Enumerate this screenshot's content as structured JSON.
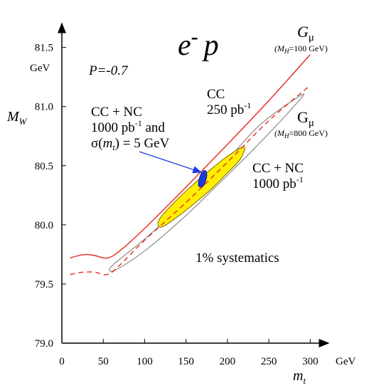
{
  "chart_data": {
    "type": "line",
    "title": "e- p",
    "title_main": "e",
    "title_sup": "-",
    "title_tail": "p",
    "xlabel": "m",
    "xlabel_sub": "t",
    "xunit": "GeV",
    "ylabel": "M",
    "ylabel_sub": "W",
    "yunit": "GeV",
    "xlim": [
      0,
      310
    ],
    "ylim": [
      79.0,
      81.6
    ],
    "x_ticks": [
      {
        "value": 0,
        "label": "0"
      },
      {
        "value": 50,
        "label": "50"
      },
      {
        "value": 100,
        "label": "100"
      },
      {
        "value": 150,
        "label": "150"
      },
      {
        "value": 200,
        "label": "200"
      },
      {
        "value": 250,
        "label": "250"
      },
      {
        "value": 300,
        "label": "300"
      }
    ],
    "y_ticks": [
      {
        "value": 79.0,
        "label": "79.0"
      },
      {
        "value": 79.5,
        "label": "79.5"
      },
      {
        "value": 80.0,
        "label": "80.0"
      },
      {
        "value": 80.5,
        "label": "80.5"
      },
      {
        "value": 81.0,
        "label": "81.0"
      },
      {
        "value": 81.5,
        "label": "81.5"
      }
    ],
    "grid": false,
    "polarization": "P=-0.7",
    "systematics": "1% systematics",
    "series": [
      {
        "name": "Gμ (MH=100 GeV)",
        "style": "solid",
        "color": "#e8281e",
        "x": [
          10,
          20,
          30,
          40,
          55,
          70,
          100,
          150,
          200,
          250,
          300
        ],
        "y": [
          79.72,
          79.74,
          79.75,
          79.74,
          79.72,
          79.78,
          79.97,
          80.32,
          80.68,
          81.05,
          81.44
        ]
      },
      {
        "name": "Gμ (MH=800 GeV)",
        "style": "dashed",
        "color": "#e8281e",
        "x": [
          10,
          25,
          40,
          55,
          70,
          100,
          150,
          200,
          250,
          300
        ],
        "y": [
          79.58,
          79.6,
          79.6,
          79.58,
          79.66,
          79.87,
          80.19,
          80.53,
          80.88,
          81.18
        ]
      }
    ],
    "ellipses": [
      {
        "name": "CC 250 pb-1",
        "fill": "none",
        "stroke": "#777777",
        "points": [
          [
            60,
            79.65
          ],
          [
            100,
            79.88
          ],
          [
            150,
            80.2
          ],
          [
            200,
            80.55
          ],
          [
            240,
            80.85
          ],
          [
            290,
            81.1
          ],
          [
            280,
            81.0
          ],
          [
            240,
            80.7
          ],
          [
            200,
            80.42
          ],
          [
            150,
            80.08
          ],
          [
            100,
            79.78
          ],
          [
            65,
            79.62
          ]
        ]
      },
      {
        "name": "CC + NC 1000 pb-1",
        "fill": "#ffee00",
        "stroke": "#7a6a00",
        "points": [
          [
            118,
            80.05
          ],
          [
            140,
            80.22
          ],
          [
            160,
            80.35
          ],
          [
            180,
            80.47
          ],
          [
            200,
            80.58
          ],
          [
            220,
            80.66
          ],
          [
            216,
            80.56
          ],
          [
            200,
            80.44
          ],
          [
            180,
            80.3
          ],
          [
            160,
            80.18
          ],
          [
            140,
            80.07
          ],
          [
            120,
            79.98
          ]
        ]
      },
      {
        "name": "CC + NC 1000 pb-1 and σ(mt) = 5 GeV",
        "fill": "#1a3de0",
        "stroke": "#0a1a80",
        "points": [
          [
            165,
            80.34
          ],
          [
            166,
            80.39
          ],
          [
            169,
            80.44
          ],
          [
            173,
            80.46
          ],
          [
            175,
            80.43
          ],
          [
            174,
            80.38
          ],
          [
            171,
            80.33
          ],
          [
            167,
            80.32
          ]
        ]
      }
    ],
    "annotations": {
      "cc_250": [
        "CC",
        "250 pb",
        "-1"
      ],
      "cc_nc_1000": [
        "CC + NC",
        "1000 pb",
        "-1"
      ],
      "cc_nc_sigma": [
        "CC + NC",
        "1000 pb",
        "-1",
        " and",
        "σ(",
        "m",
        "t",
        ") = 5 GeV"
      ],
      "g_mu_100": [
        "G",
        "μ",
        "(M",
        "H",
        "=100 GeV)"
      ],
      "g_mu_800": [
        "G",
        "μ",
        "(M",
        "H",
        "=800 GeV)"
      ]
    }
  }
}
